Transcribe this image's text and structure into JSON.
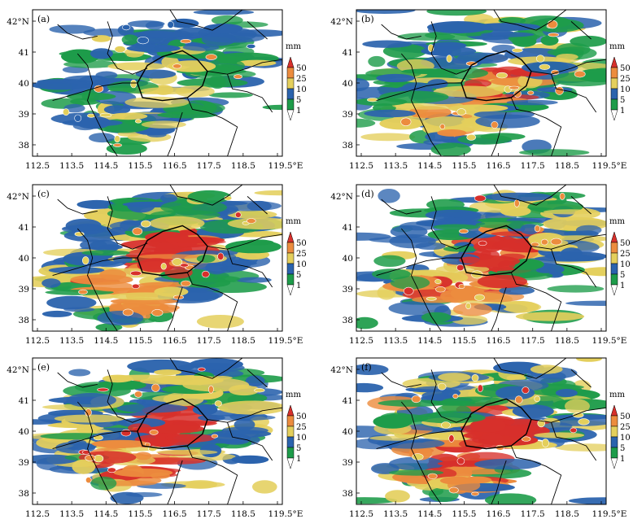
{
  "panels": [
    {
      "label": "(a)",
      "intensity": 0.15
    },
    {
      "label": "(b)",
      "intensity": 0.45
    },
    {
      "label": "(c)",
      "intensity": 0.7
    },
    {
      "label": "(d)",
      "intensity": 0.75
    },
    {
      "label": "(e)",
      "intensity": 0.92
    },
    {
      "label": "(f)",
      "intensity": 0.95
    }
  ],
  "x_ticks": [
    "112.5",
    "113.5",
    "114.5",
    "115.5",
    "116.5",
    "117.5",
    "118.5",
    "119.5°E"
  ],
  "y_ticks": [
    "42°N",
    "41",
    "40",
    "39",
    "38"
  ],
  "legend": {
    "unit": "mm",
    "levels": [
      "50",
      "25",
      "10",
      "5",
      "1"
    ]
  },
  "colors": {
    "red": "#d7302b",
    "orange": "#ec8c3e",
    "yellow": "#e4cf5c",
    "blue": "#2b63ad",
    "green": "#1e9c4a",
    "border": "#000000"
  }
}
